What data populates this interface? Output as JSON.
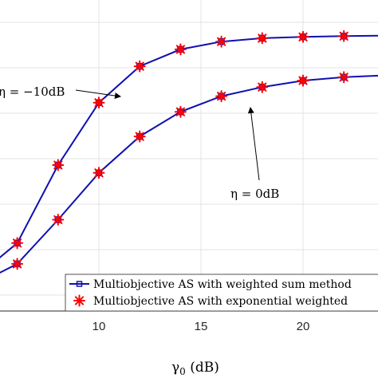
{
  "chart_data": {
    "type": "line",
    "xlabel": "γ0 (dB)",
    "xlabel_main": "γ",
    "xlabel_sub": "0",
    "xlabel_unit": " (dB)",
    "x_ticks": [
      10,
      15,
      20
    ],
    "xlim": [
      5,
      25
    ],
    "ylim": [
      0,
      1
    ],
    "grid": true,
    "legend_position": "bottom-right",
    "series": [
      {
        "name": "Multiobjective AS with weighted sum method",
        "color": "#1010b0",
        "marker": "square",
        "curves": [
          {
            "x": [
              4,
              6,
              8,
              10,
              12,
              14,
              16,
              18,
              20,
              22,
              24
            ],
            "y": [
              0.07,
              0.2,
              0.5,
              0.74,
              0.88,
              0.945,
              0.975,
              0.988,
              0.993,
              0.996,
              0.998
            ]
          },
          {
            "x": [
              4,
              6,
              8,
              10,
              12,
              14,
              16,
              18,
              20,
              22,
              24
            ],
            "y": [
              0.04,
              0.12,
              0.29,
              0.47,
              0.61,
              0.705,
              0.765,
              0.8,
              0.825,
              0.838,
              0.845
            ]
          }
        ]
      },
      {
        "name": "Multiobjective AS with exponential weighted",
        "color": "#ff0000",
        "marker": "asterisk",
        "curves": [
          {
            "x": [
              4,
              6,
              8,
              10,
              12,
              14,
              16,
              18,
              20,
              22,
              24
            ],
            "y": [
              0.07,
              0.2,
              0.5,
              0.74,
              0.88,
              0.945,
              0.975,
              0.988,
              0.993,
              0.996,
              0.998
            ]
          },
          {
            "x": [
              4,
              6,
              8,
              10,
              12,
              14,
              16,
              18,
              20,
              22,
              24
            ],
            "y": [
              0.04,
              0.12,
              0.29,
              0.47,
              0.61,
              0.705,
              0.765,
              0.8,
              0.825,
              0.838,
              0.845
            ]
          }
        ]
      }
    ],
    "annotations": [
      {
        "text_main": "η = −10dB",
        "target": {
          "x": 11,
          "y": 0.83
        }
      },
      {
        "text_main": "η = 0dB",
        "target": {
          "x": 16.5,
          "y": 0.79
        }
      }
    ]
  }
}
